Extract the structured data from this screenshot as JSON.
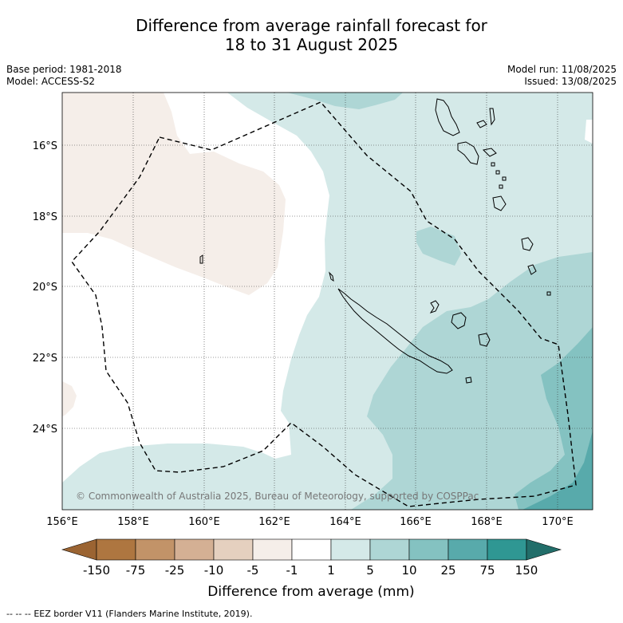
{
  "header": {
    "title_line1": "Difference from average rainfall forecast for",
    "title_line2": "18 to 31 August 2025",
    "base_period": "Base period: 1981-2018",
    "model": "Model: ACCESS-S2",
    "model_run": "Model run: 11/08/2025",
    "issued": "Issued: 13/08/2025"
  },
  "map": {
    "lat_labels": [
      "16°S",
      "18°S",
      "20°S",
      "22°S",
      "24°S"
    ],
    "lon_labels": [
      "156°E",
      "158°E",
      "160°E",
      "162°E",
      "164°E",
      "166°E",
      "168°E",
      "170°E"
    ],
    "copyright": "© Commonwealth of Australia 2025, Bureau of Meteorology, supported by COSPPac",
    "colors": {
      "light_brown": "#f5eee9",
      "pale_teal": "#d4e9e8",
      "light_teal": "#aed6d5",
      "mid_teal": "#84c2c1",
      "dark_teal": "#58aaab"
    }
  },
  "colorbar": {
    "labels": [
      "-150",
      "-75",
      "-25",
      "-10",
      "-5",
      "-1",
      "1",
      "5",
      "10",
      "25",
      "75",
      "150"
    ],
    "colors": [
      "#9b6432",
      "#ae7640",
      "#c29368",
      "#d4b094",
      "#e5d0bf",
      "#f5eee9",
      "#ffffff",
      "#d4e9e8",
      "#aed6d5",
      "#84c2c1",
      "#58aaab",
      "#2f9793",
      "#226e6a"
    ],
    "title": "Difference from average (mm)"
  },
  "footer": {
    "legend_symbol": "--  --  --",
    "legend_text": "EEZ border V11 (Flanders Marine Institute, 2019)."
  }
}
